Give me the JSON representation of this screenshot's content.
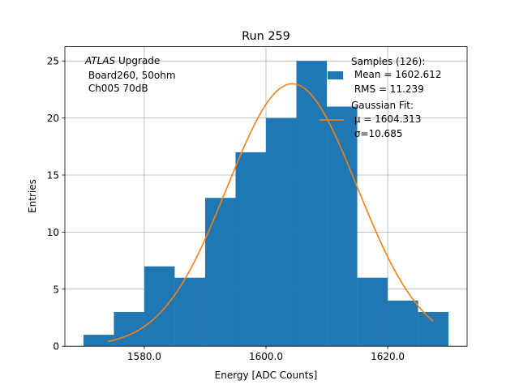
{
  "chart_data": {
    "type": "bar",
    "title": "Run 259",
    "xlabel": "Energy [ADC Counts]",
    "ylabel": "Entries",
    "xlim": [
      1566.95,
      1633.05
    ],
    "ylim": [
      0,
      26.25
    ],
    "grid": true,
    "xticks": [
      {
        "value": 1580,
        "label": "1580.0"
      },
      {
        "value": 1600,
        "label": "1600.0"
      },
      {
        "value": 1620,
        "label": "1620.0"
      }
    ],
    "yticks": [
      {
        "value": 0,
        "label": "0"
      },
      {
        "value": 5,
        "label": "5"
      },
      {
        "value": 10,
        "label": "10"
      },
      {
        "value": 15,
        "label": "15"
      },
      {
        "value": 20,
        "label": "20"
      },
      {
        "value": 25,
        "label": "25"
      }
    ],
    "bins": [
      {
        "x0": 1570,
        "x1": 1575,
        "count": 1
      },
      {
        "x0": 1575,
        "x1": 1580,
        "count": 3
      },
      {
        "x0": 1580,
        "x1": 1585,
        "count": 7
      },
      {
        "x0": 1585,
        "x1": 1590,
        "count": 6
      },
      {
        "x0": 1590,
        "x1": 1595,
        "count": 13
      },
      {
        "x0": 1595,
        "x1": 1600,
        "count": 17
      },
      {
        "x0": 1600,
        "x1": 1605,
        "count": 20
      },
      {
        "x0": 1605,
        "x1": 1610,
        "count": 25
      },
      {
        "x0": 1610,
        "x1": 1615,
        "count": 21
      },
      {
        "x0": 1615,
        "x1": 1620,
        "count": 6
      },
      {
        "x0": 1620,
        "x1": 1625,
        "count": 4
      },
      {
        "x0": 1625,
        "x1": 1630,
        "count": 3
      }
    ],
    "fit": {
      "mu": 1604.313,
      "sigma": 10.685,
      "amplitude": 23.0,
      "x_range": [
        1574.0,
        1627.5
      ]
    },
    "colors": {
      "histogram": "#1f77b4",
      "fit": "#ff7f0e",
      "grid": "#b0b0b0"
    },
    "annotation_lines": [
      "ATLAS Upgrade",
      " Board260, 50ohm",
      " Ch005 70dB"
    ],
    "annotation_italic": "ATLAS",
    "annotation_rest": " Upgrade",
    "legend": {
      "location": "top-right",
      "samples_lines": [
        "Samples (126):",
        " Mean = 1602.612",
        " RMS = 11.239"
      ],
      "fit_lines": [
        "Gaussian Fit:",
        " μ = 1604.313",
        " σ=10.685"
      ]
    }
  }
}
